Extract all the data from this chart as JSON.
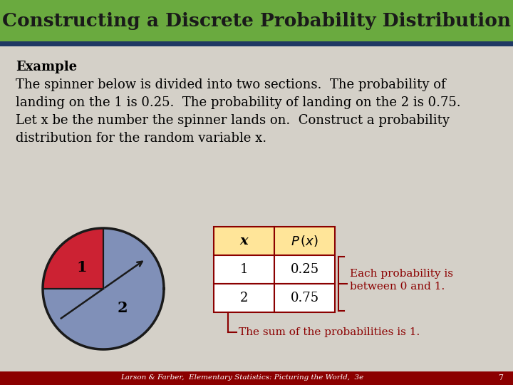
{
  "title": "Constructing a Discrete Probability Distribution",
  "title_bg_color": "#6aaa3f",
  "title_text_color": "#1a1a1a",
  "slide_bg_color": "#d4d0c8",
  "footer_bg_color": "#8b0000",
  "footer_text": "Larson & Farber,  Elementary Statistics: Picturing the World,  3e",
  "footer_page": "7",
  "table_header_bg": "#ffe599",
  "table_border_color": "#8b0000",
  "annotation_color": "#8b0000",
  "spinner_color1": "#cc2233",
  "spinner_color2": "#8090b8",
  "spinner_outline": "#1a1a1a",
  "blue_bar_color": "#1f3864",
  "needle_color": "#1a1a1a"
}
